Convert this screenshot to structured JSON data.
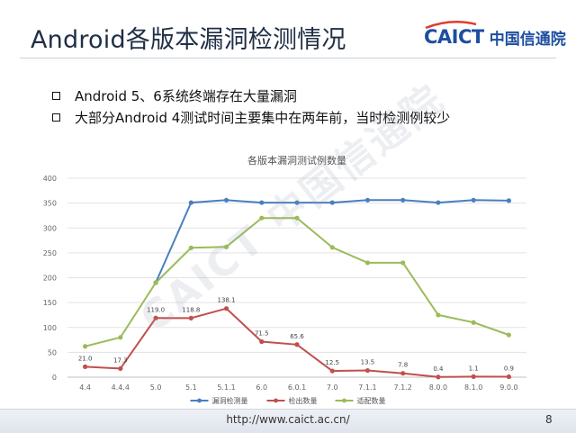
{
  "slide": {
    "title": "Android各版本漏洞检测情况",
    "page_number": "8",
    "footer_url": "http://www.caict.ac.cn/"
  },
  "logo": {
    "mark": "CAICT",
    "cn_name": "中国信通院"
  },
  "watermark": "CAICT 中国信通院",
  "bullets": [
    "Android 5、6系统终端存在大量漏洞",
    "大部分Android 4测试时间主要集中在两年前，当时检测例较少"
  ],
  "chart_data": {
    "type": "line",
    "title": "各版本漏洞测试例数量",
    "categories": [
      "4.4",
      "4.4.4",
      "5.0",
      "5.1",
      "5.1.1",
      "6.0",
      "6.0.1",
      "7.0",
      "7.1.1",
      "7.1.2",
      "8.0.0",
      "8.1.0",
      "9.0.0"
    ],
    "ylim": [
      0,
      400
    ],
    "yticks": [
      0,
      50,
      100,
      150,
      200,
      250,
      300,
      350,
      400
    ],
    "grid": true,
    "legend_position": "bottom",
    "series": [
      {
        "name": "漏洞检测量",
        "color": "#4a7ebf",
        "values": [
          null,
          null,
          190,
          351,
          356,
          351,
          351,
          351,
          356,
          356,
          351,
          356,
          355
        ]
      },
      {
        "name": "检出数量",
        "color": "#c0504d",
        "values": [
          21.0,
          17.3,
          119.0,
          118.8,
          138.1,
          71.5,
          65.6,
          12.5,
          13.5,
          7.8,
          0.4,
          1.1,
          0.9
        ],
        "data_labels": [
          "21.0",
          "17.3",
          "119.0",
          "118.8",
          "138.1",
          "71.5",
          "65.6",
          "12.5",
          "13.5",
          "7.8",
          "0.4",
          "1.1",
          "0.9"
        ]
      },
      {
        "name": "适配数量",
        "color": "#9bbb59",
        "values": [
          62,
          80,
          190,
          260,
          262,
          320,
          320,
          261,
          230,
          230,
          125,
          110,
          85
        ]
      }
    ]
  }
}
